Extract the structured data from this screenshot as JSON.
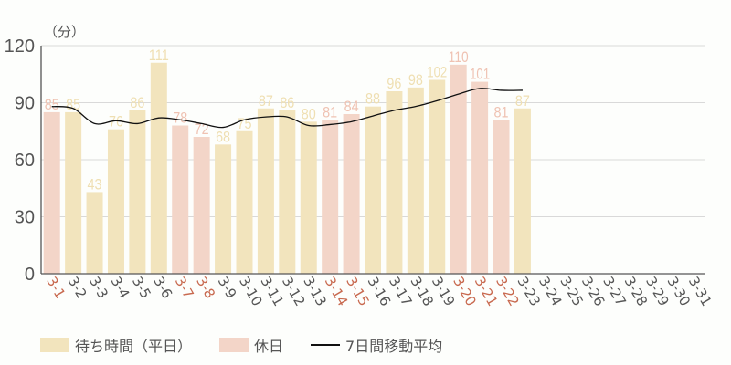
{
  "chart_data": {
    "type": "bar",
    "title": "",
    "unit_label": "（分）",
    "xlabel": "",
    "ylabel": "（分）",
    "ylim": [
      0,
      120
    ],
    "yticks": [
      0,
      30,
      60,
      90,
      120
    ],
    "grid": true,
    "legend_position": "bottom",
    "categories": [
      "3-1",
      "3-2",
      "3-3",
      "3-4",
      "3-5",
      "3-6",
      "3-7",
      "3-8",
      "3-9",
      "3-10",
      "3-11",
      "3-12",
      "3-13",
      "3-14",
      "3-15",
      "3-16",
      "3-17",
      "3-18",
      "3-19",
      "3-20",
      "3-21",
      "3-22",
      "3-23",
      "3-24",
      "3-25",
      "3-26",
      "3-27",
      "3-28",
      "3-29",
      "3-30",
      "3-31"
    ],
    "holidays": [
      "3-1",
      "3-7",
      "3-8",
      "3-14",
      "3-15",
      "3-20",
      "3-21",
      "3-22"
    ],
    "series": [
      {
        "name": "待ち時間（平日）",
        "type": "bar",
        "color": "#f2e4bd",
        "values": [
          null,
          85,
          43,
          76,
          86,
          111,
          null,
          null,
          68,
          75,
          87,
          86,
          80,
          null,
          null,
          88,
          96,
          98,
          102,
          null,
          null,
          null,
          87,
          null,
          null,
          null,
          null,
          null,
          null,
          null,
          null
        ]
      },
      {
        "name": "休日",
        "type": "bar",
        "color": "#f3d5c8",
        "values": [
          85,
          null,
          null,
          null,
          null,
          null,
          78,
          72,
          null,
          null,
          null,
          null,
          null,
          81,
          84,
          null,
          null,
          null,
          null,
          110,
          101,
          81,
          null,
          null,
          null,
          null,
          null,
          null,
          null,
          null,
          null
        ]
      },
      {
        "name": "7日間移動平均",
        "type": "line",
        "color": "#111111",
        "values": [
          88,
          87,
          79,
          80.5,
          79,
          82,
          81,
          79,
          77,
          81,
          82.5,
          82.5,
          78,
          78.5,
          80,
          83,
          86,
          88,
          91,
          94.5,
          97.5,
          96.5,
          96.5,
          null,
          null,
          null,
          null,
          null,
          null,
          null,
          null
        ]
      }
    ]
  },
  "legend": {
    "weekday": "待ち時間（平日）",
    "holiday": "休日",
    "moving_avg": "7日間移動平均"
  },
  "colors": {
    "weekday_bar": "#f2e4bd",
    "holiday_bar": "#f3d5c8",
    "weekday_label": "#efdfb2",
    "holiday_label": "#efc2b2",
    "holiday_tick": "#c8694f",
    "tick": "#555555",
    "grid": "#d9d9d9",
    "axis": "#555555"
  }
}
